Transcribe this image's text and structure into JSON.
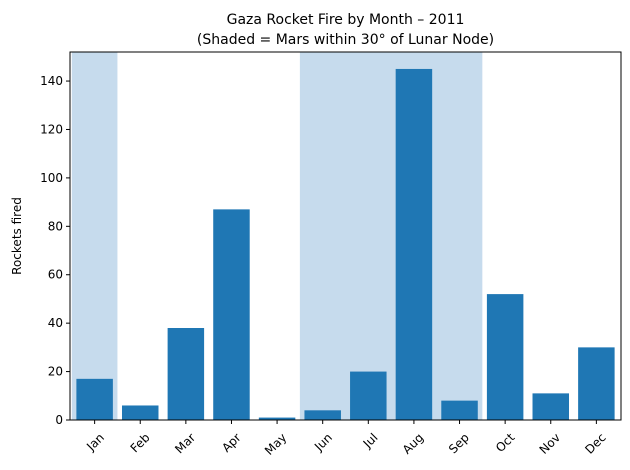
{
  "chart_data": {
    "type": "bar",
    "title_line1": "Gaza Rocket Fire by Month – 2011",
    "title_line2": "(Shaded = Mars within 30° of Lunar Node)",
    "xlabel": "",
    "ylabel": "Rockets fired",
    "categories": [
      "Jan",
      "Feb",
      "Mar",
      "Apr",
      "May",
      "Jun",
      "Jul",
      "Aug",
      "Sep",
      "Oct",
      "Nov",
      "Dec"
    ],
    "values": [
      17,
      6,
      38,
      87,
      1,
      4,
      20,
      145,
      8,
      52,
      11,
      30
    ],
    "ylim": [
      0,
      152
    ],
    "yticks": [
      0,
      20,
      40,
      60,
      80,
      100,
      120,
      140
    ],
    "shaded_months": [
      [
        "Jan",
        "Jan"
      ],
      [
        "Jun",
        "Sep"
      ]
    ],
    "bar_color": "#1f77b4",
    "shade_color": "#c6dbed",
    "grid": false,
    "legend": "none"
  }
}
